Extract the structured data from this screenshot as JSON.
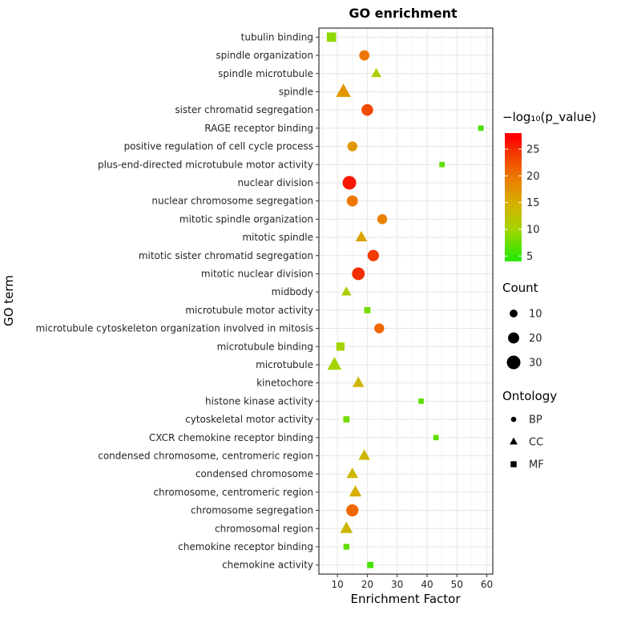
{
  "chart_data": {
    "type": "scatter",
    "title": "GO enrichment",
    "xlabel": "Enrichment Factor",
    "ylabel": "GO term",
    "xlim": [
      3.8,
      62
    ],
    "x_ticks": [
      10,
      20,
      30,
      40,
      50,
      60
    ],
    "grid": true,
    "legend_position": "right",
    "color_scale": {
      "title": "−log₁₀(p_value)",
      "ticks": [
        25,
        20,
        15,
        10,
        5
      ],
      "domain": [
        4,
        28
      ],
      "stops": [
        [
          5,
          "#2FE600"
        ],
        [
          10,
          "#A5D500"
        ],
        [
          15,
          "#D8AE00"
        ],
        [
          20,
          "#EE7600"
        ],
        [
          25,
          "#F42D00"
        ],
        [
          27,
          "#FF0000"
        ]
      ]
    },
    "size_scale": {
      "title": "Count",
      "ticks": [
        10,
        20,
        30
      ]
    },
    "shape_scale": {
      "title": "Ontology",
      "entries": [
        {
          "label": "BP",
          "shape": "circle"
        },
        {
          "label": "CC",
          "shape": "triangle"
        },
        {
          "label": "MF",
          "shape": "square"
        }
      ]
    },
    "points": [
      {
        "term": "tubulin binding",
        "x": 8,
        "neg_log10_p": 9,
        "count": 18,
        "ontology": "MF"
      },
      {
        "term": "spindle organization",
        "x": 19,
        "neg_log10_p": 20,
        "count": 17,
        "ontology": "BP"
      },
      {
        "term": "spindle microtubule",
        "x": 23,
        "neg_log10_p": 11,
        "count": 12,
        "ontology": "CC"
      },
      {
        "term": "spindle",
        "x": 12,
        "neg_log10_p": 17,
        "count": 26,
        "ontology": "CC"
      },
      {
        "term": "sister chromatid segregation",
        "x": 20,
        "neg_log10_p": 23,
        "count": 22,
        "ontology": "BP"
      },
      {
        "term": "RAGE receptor binding",
        "x": 58,
        "neg_log10_p": 6,
        "count": 6,
        "ontology": "MF"
      },
      {
        "term": "positive regulation of cell cycle process",
        "x": 15,
        "neg_log10_p": 17,
        "count": 16,
        "ontology": "BP"
      },
      {
        "term": "plus-end-directed microtubule motor activity",
        "x": 45,
        "neg_log10_p": 7,
        "count": 6,
        "ontology": "MF"
      },
      {
        "term": "nuclear division",
        "x": 14,
        "neg_log10_p": 26,
        "count": 30,
        "ontology": "BP"
      },
      {
        "term": "nuclear chromosome segregation",
        "x": 15,
        "neg_log10_p": 20,
        "count": 20,
        "ontology": "BP"
      },
      {
        "term": "mitotic spindle organization",
        "x": 25,
        "neg_log10_p": 19,
        "count": 16,
        "ontology": "BP"
      },
      {
        "term": "mitotic spindle",
        "x": 18,
        "neg_log10_p": 16,
        "count": 16,
        "ontology": "CC"
      },
      {
        "term": "mitotic sister chromatid segregation",
        "x": 22,
        "neg_log10_p": 24,
        "count": 21,
        "ontology": "BP"
      },
      {
        "term": "mitotic nuclear division",
        "x": 17,
        "neg_log10_p": 25,
        "count": 26,
        "ontology": "BP"
      },
      {
        "term": "midbody",
        "x": 13,
        "neg_log10_p": 11,
        "count": 12,
        "ontology": "CC"
      },
      {
        "term": "microtubule motor activity",
        "x": 20,
        "neg_log10_p": 8,
        "count": 8,
        "ontology": "MF"
      },
      {
        "term": "microtubule cytoskeleton organization involved in mitosis",
        "x": 24,
        "neg_log10_p": 21,
        "count": 16,
        "ontology": "BP"
      },
      {
        "term": "microtubule binding",
        "x": 11,
        "neg_log10_p": 10,
        "count": 14,
        "ontology": "MF"
      },
      {
        "term": "microtubule",
        "x": 9,
        "neg_log10_p": 10,
        "count": 24,
        "ontology": "CC"
      },
      {
        "term": "kinetochore",
        "x": 17,
        "neg_log10_p": 14,
        "count": 16,
        "ontology": "CC"
      },
      {
        "term": "histone kinase activity",
        "x": 38,
        "neg_log10_p": 7,
        "count": 6,
        "ontology": "MF"
      },
      {
        "term": "cytoskeletal motor activity",
        "x": 13,
        "neg_log10_p": 8,
        "count": 8,
        "ontology": "MF"
      },
      {
        "term": "CXCR chemokine receptor binding",
        "x": 43,
        "neg_log10_p": 7,
        "count": 6,
        "ontology": "MF"
      },
      {
        "term": "condensed chromosome, centromeric region",
        "x": 19,
        "neg_log10_p": 14,
        "count": 16,
        "ontology": "CC"
      },
      {
        "term": "condensed chromosome",
        "x": 15,
        "neg_log10_p": 14,
        "count": 16,
        "ontology": "CC"
      },
      {
        "term": "chromosome, centromeric region",
        "x": 16,
        "neg_log10_p": 15,
        "count": 18,
        "ontology": "CC"
      },
      {
        "term": "chromosome segregation",
        "x": 15,
        "neg_log10_p": 21,
        "count": 24,
        "ontology": "BP"
      },
      {
        "term": "chromosomal region",
        "x": 13,
        "neg_log10_p": 14,
        "count": 19,
        "ontology": "CC"
      },
      {
        "term": "chemokine receptor binding",
        "x": 13,
        "neg_log10_p": 7,
        "count": 7,
        "ontology": "MF"
      },
      {
        "term": "chemokine activity",
        "x": 21,
        "neg_log10_p": 6,
        "count": 8,
        "ontology": "MF"
      }
    ]
  }
}
